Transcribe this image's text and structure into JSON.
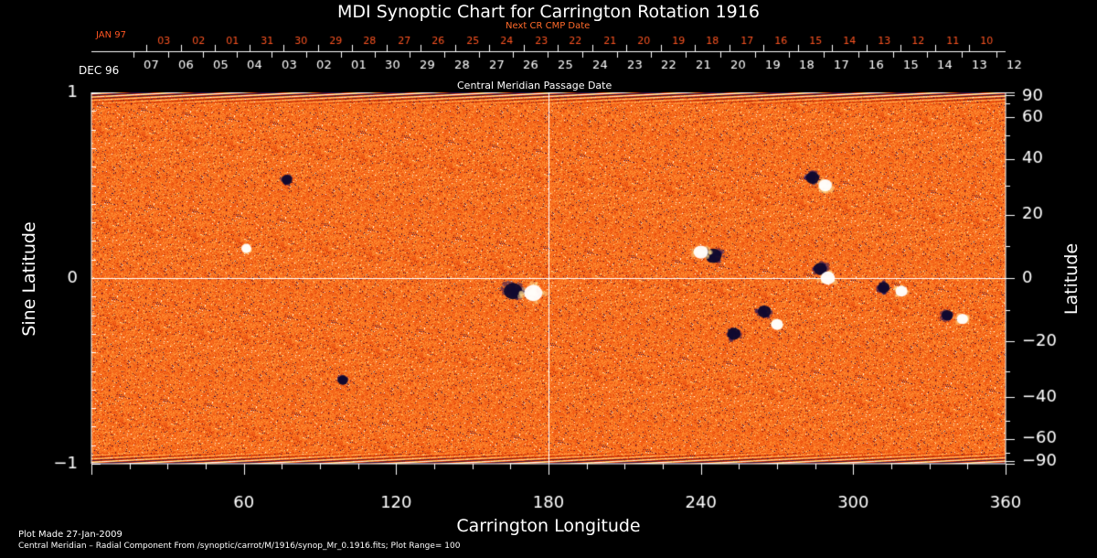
{
  "chart_data": {
    "type": "heatmap",
    "title": "MDI Synoptic Chart for Carrington Rotation 1916",
    "xlabel": "Carrington Longitude",
    "ylabel": "Sine Latitude",
    "y2label": "Latitude",
    "xlim": [
      0,
      360
    ],
    "ylim": [
      -1,
      1
    ],
    "x_ticks": [
      60,
      120,
      180,
      240,
      300,
      360
    ],
    "y_ticks": [
      -1,
      0,
      1
    ],
    "y_tick_labels": [
      "−1",
      "0",
      "1"
    ],
    "lat_ticks": [
      90,
      60,
      40,
      20,
      0,
      -20,
      -40,
      -60,
      -90
    ],
    "lat_tick_labels": [
      "90",
      "60",
      "40",
      "20",
      "0",
      "−20",
      "−40",
      "−60",
      "−90"
    ],
    "grid_lines": {
      "x": [
        180
      ],
      "y": [
        0
      ]
    },
    "colormap": [
      "#1a0d5a",
      "#5a1226",
      "#c22a08",
      "#f35a12",
      "#ff8a2e",
      "#ffd27a",
      "#ffffff"
    ],
    "central_meridian_axis": {
      "label": "Central Meridian Passage Date",
      "start_label": "DEC 96",
      "dates": [
        "07",
        "06",
        "05",
        "04",
        "03",
        "02",
        "01",
        "30",
        "29",
        "28",
        "27",
        "26",
        "25",
        "24",
        "23",
        "22",
        "21",
        "20",
        "19",
        "18",
        "17",
        "16",
        "15",
        "14",
        "13",
        "12"
      ]
    },
    "next_cr_axis": {
      "label": "Next CR CMP Date",
      "start_label": "JAN 97",
      "dates": [
        "03",
        "02",
        "01",
        "31",
        "30",
        "29",
        "28",
        "27",
        "26",
        "25",
        "24",
        "23",
        "22",
        "21",
        "20",
        "19",
        "18",
        "17",
        "16",
        "15",
        "14",
        "13",
        "12",
        "11",
        "10"
      ]
    },
    "active_regions": [
      {
        "lon": 166,
        "sinlat": -0.07,
        "polarity": "negative",
        "strength": 1.0
      },
      {
        "lon": 174,
        "sinlat": -0.08,
        "polarity": "positive",
        "strength": 1.0
      },
      {
        "lon": 245,
        "sinlat": 0.12,
        "polarity": "negative",
        "strength": 0.8
      },
      {
        "lon": 240,
        "sinlat": 0.14,
        "polarity": "positive",
        "strength": 0.7
      },
      {
        "lon": 287,
        "sinlat": 0.05,
        "polarity": "negative",
        "strength": 0.6
      },
      {
        "lon": 290,
        "sinlat": 0.0,
        "polarity": "positive",
        "strength": 0.7
      },
      {
        "lon": 284,
        "sinlat": 0.54,
        "polarity": "negative",
        "strength": 0.6
      },
      {
        "lon": 289,
        "sinlat": 0.5,
        "polarity": "positive",
        "strength": 0.6
      },
      {
        "lon": 253,
        "sinlat": -0.3,
        "polarity": "negative",
        "strength": 0.6
      },
      {
        "lon": 265,
        "sinlat": -0.18,
        "polarity": "negative",
        "strength": 0.6
      },
      {
        "lon": 270,
        "sinlat": -0.25,
        "polarity": "positive",
        "strength": 0.5
      },
      {
        "lon": 312,
        "sinlat": -0.05,
        "polarity": "negative",
        "strength": 0.5
      },
      {
        "lon": 319,
        "sinlat": -0.07,
        "polarity": "positive",
        "strength": 0.5
      },
      {
        "lon": 337,
        "sinlat": -0.2,
        "polarity": "negative",
        "strength": 0.45
      },
      {
        "lon": 343,
        "sinlat": -0.22,
        "polarity": "positive",
        "strength": 0.45
      },
      {
        "lon": 77,
        "sinlat": 0.53,
        "polarity": "negative",
        "strength": 0.4
      },
      {
        "lon": 99,
        "sinlat": -0.55,
        "polarity": "negative",
        "strength": 0.35
      },
      {
        "lon": 61,
        "sinlat": 0.16,
        "polarity": "positive",
        "strength": 0.35
      }
    ]
  },
  "footer": {
    "plot_made": "Plot Made 27-Jan-2009",
    "description": "Central Meridian – Radial Component From /synoptic/carrot/M/1916/synop_Mr_0.1916.fits; Plot Range=  100"
  }
}
